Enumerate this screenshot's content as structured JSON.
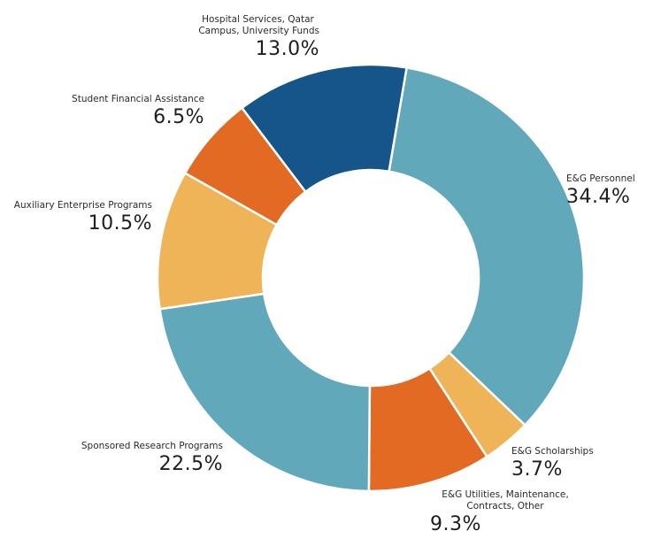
{
  "chart_data": {
    "type": "pie",
    "variant": "donut",
    "title": "",
    "direction": "clockwise",
    "slices": [
      {
        "label": "E&G Personnel",
        "value": 34.4,
        "display": "34.4%",
        "color": "#62a8bb"
      },
      {
        "label": "E&G Scholarships",
        "value": 3.7,
        "display": "3.7%",
        "color": "#efb457"
      },
      {
        "label": "E&G Utilities, Maintenance, Contracts, Other",
        "value": 9.3,
        "display": "9.3%",
        "color": "#e36a22"
      },
      {
        "label": "Sponsored Research Programs",
        "value": 22.5,
        "display": "22.5%",
        "color": "#62a8bb"
      },
      {
        "label": "Auxiliary Enterprise Programs",
        "value": 10.5,
        "display": "10.5%",
        "color": "#efb457"
      },
      {
        "label": "Student Financial Assistance",
        "value": 6.5,
        "display": "6.5%",
        "color": "#e36a22"
      },
      {
        "label": "Hospital Services, Qatar Campus, University Funds",
        "value": 13.0,
        "display": "13.0%",
        "color": "#165589"
      }
    ],
    "label_lines": {
      "personnel": [
        "E&G Personnel"
      ],
      "scholarships": [
        "E&G Scholarships"
      ],
      "utilities": [
        "E&G Utilities, Maintenance,",
        "Contracts, Other"
      ],
      "research": [
        "Sponsored Research Programs"
      ],
      "auxiliary": [
        "Auxiliary Enterprise Programs"
      ],
      "student": [
        "Student Financial Assistance"
      ],
      "hospital": [
        "Hospital Services, Qatar",
        "Campus, University Funds"
      ]
    }
  }
}
